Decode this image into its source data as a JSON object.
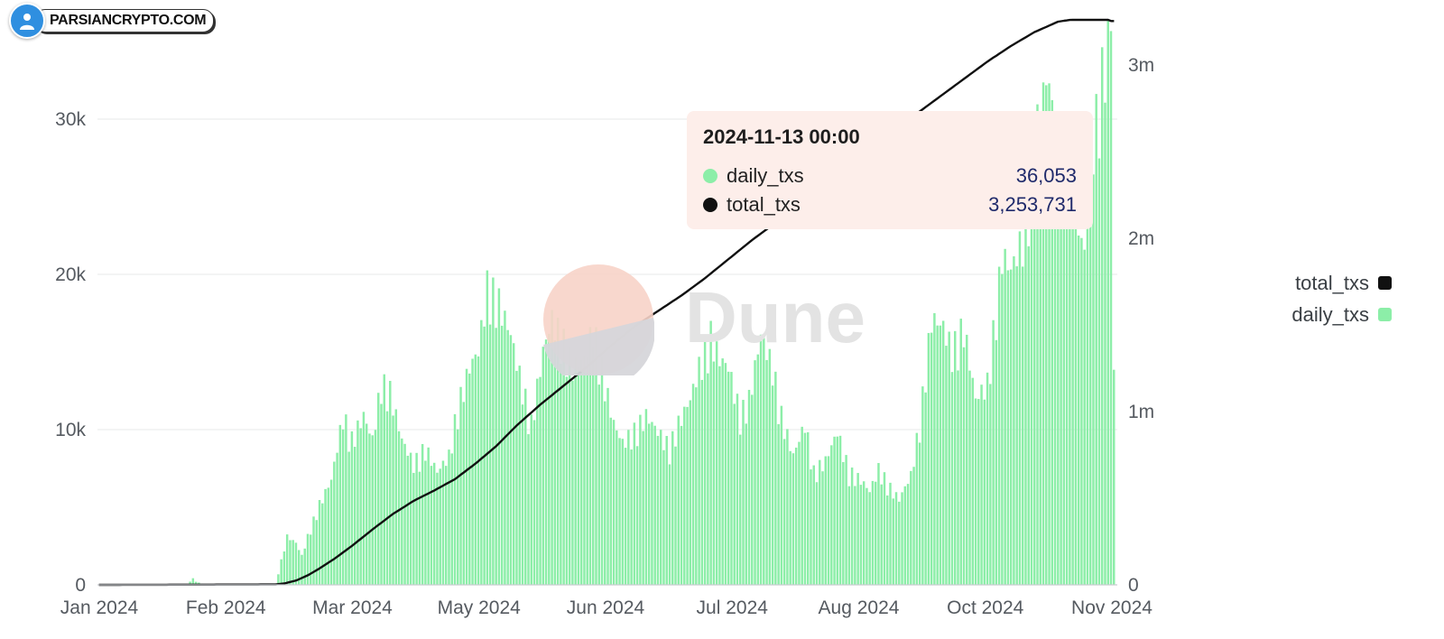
{
  "logo": {
    "text": "PARSIANCRYPTO.COM"
  },
  "watermark": {
    "text": "Dune"
  },
  "tooltip": {
    "title": "2024-11-13 00:00",
    "rows": [
      {
        "name": "daily_txs",
        "value": "36,053",
        "color": "#8ceea8"
      },
      {
        "name": "total_txs",
        "value": "3,253,731",
        "color": "#111111"
      }
    ]
  },
  "legend": [
    {
      "name": "total_txs",
      "color": "#111111"
    },
    {
      "name": "daily_txs",
      "color": "#8ceea8"
    }
  ],
  "chart_data": {
    "type": "bar+line",
    "title": "",
    "xlabel": "",
    "ylabel": "",
    "x_ticks": [
      "Jan 2024",
      "Feb 2024",
      "Mar 2024",
      "May 2024",
      "Jun 2024",
      "Jul 2024",
      "Aug 2024",
      "Oct 2024",
      "Nov 2024"
    ],
    "y_left": {
      "ticks": [
        "0",
        "10k",
        "20k",
        "30k"
      ],
      "tick_values": [
        0,
        10000,
        20000,
        30000
      ],
      "range": [
        0,
        30000
      ]
    },
    "y_right": {
      "ticks": [
        "0",
        "1m",
        "2m",
        "3m"
      ],
      "tick_values": [
        0,
        1000000,
        2000000,
        3000000
      ],
      "range": [
        0,
        3000000
      ]
    },
    "grid": true,
    "legend_position": "right",
    "series": [
      {
        "name": "daily_txs",
        "type": "bar",
        "axis": "left",
        "color": "#8ceea8",
        "anchors": [
          [
            0,
            0
          ],
          [
            30,
            0
          ],
          [
            32,
            400
          ],
          [
            33,
            200
          ],
          [
            36,
            0
          ],
          [
            60,
            0
          ],
          [
            62,
            1500
          ],
          [
            64,
            3000
          ],
          [
            67,
            2600
          ],
          [
            69,
            1800
          ],
          [
            71,
            3000
          ],
          [
            75,
            5000
          ],
          [
            79,
            6500
          ],
          [
            83,
            10500
          ],
          [
            86,
            9000
          ],
          [
            90,
            10500
          ],
          [
            93,
            9000
          ],
          [
            96,
            12500
          ],
          [
            99,
            12000
          ],
          [
            103,
            9000
          ],
          [
            107,
            7500
          ],
          [
            111,
            8500
          ],
          [
            115,
            7000
          ],
          [
            119,
            8000
          ],
          [
            122,
            11000
          ],
          [
            126,
            13500
          ],
          [
            129,
            14500
          ],
          [
            132,
            18500
          ],
          [
            136,
            17500
          ],
          [
            140,
            15500
          ],
          [
            143,
            13000
          ],
          [
            147,
            10000
          ],
          [
            151,
            14500
          ],
          [
            154,
            16500
          ],
          [
            158,
            15000
          ],
          [
            161,
            13500
          ],
          [
            165,
            14000
          ],
          [
            168,
            16000
          ],
          [
            172,
            12500
          ],
          [
            175,
            10000
          ],
          [
            178,
            8800
          ],
          [
            182,
            9500
          ],
          [
            186,
            10500
          ],
          [
            190,
            9500
          ],
          [
            194,
            8500
          ],
          [
            197,
            10000
          ],
          [
            201,
            11500
          ],
          [
            204,
            13500
          ],
          [
            208,
            15500
          ],
          [
            211,
            14000
          ],
          [
            214,
            13500
          ],
          [
            218,
            10500
          ],
          [
            221,
            11500
          ],
          [
            225,
            15500
          ],
          [
            229,
            13500
          ],
          [
            232,
            10500
          ],
          [
            236,
            8000
          ],
          [
            240,
            10000
          ],
          [
            243,
            7000
          ],
          [
            247,
            7700
          ],
          [
            251,
            9500
          ],
          [
            255,
            7000
          ],
          [
            259,
            6500
          ],
          [
            262,
            5800
          ],
          [
            265,
            7200
          ],
          [
            269,
            6000
          ],
          [
            272,
            5300
          ],
          [
            276,
            6800
          ],
          [
            279,
            10000
          ],
          [
            283,
            16500
          ],
          [
            287,
            16000
          ],
          [
            290,
            14500
          ],
          [
            294,
            16000
          ],
          [
            298,
            11500
          ],
          [
            302,
            12500
          ],
          [
            305,
            17000
          ],
          [
            307,
            20500
          ],
          [
            310,
            19500
          ],
          [
            314,
            21500
          ],
          [
            317,
            25500
          ],
          [
            320,
            30000
          ],
          [
            323,
            31500
          ],
          [
            326,
            24500
          ],
          [
            329,
            26000
          ],
          [
            332,
            23000
          ],
          [
            335,
            20500
          ],
          [
            338,
            27500
          ],
          [
            341,
            31500
          ],
          [
            344,
            36053
          ],
          [
            345,
            13000
          ]
        ]
      },
      {
        "name": "total_txs",
        "type": "line",
        "axis": "right",
        "color": "#111111",
        "anchors": [
          [
            0,
            0
          ],
          [
            60,
            2000
          ],
          [
            63,
            8000
          ],
          [
            67,
            25000
          ],
          [
            71,
            55000
          ],
          [
            75,
            95000
          ],
          [
            80,
            150000
          ],
          [
            86,
            225000
          ],
          [
            93,
            320000
          ],
          [
            100,
            410000
          ],
          [
            107,
            485000
          ],
          [
            114,
            545000
          ],
          [
            121,
            610000
          ],
          [
            128,
            700000
          ],
          [
            135,
            800000
          ],
          [
            142,
            920000
          ],
          [
            150,
            1040000
          ],
          [
            158,
            1150000
          ],
          [
            166,
            1260000
          ],
          [
            174,
            1380000
          ],
          [
            182,
            1490000
          ],
          [
            190,
            1580000
          ],
          [
            198,
            1670000
          ],
          [
            206,
            1770000
          ],
          [
            214,
            1880000
          ],
          [
            222,
            1990000
          ],
          [
            230,
            2090000
          ],
          [
            238,
            2190000
          ],
          [
            246,
            2290000
          ],
          [
            254,
            2400000
          ],
          [
            262,
            2510000
          ],
          [
            270,
            2620000
          ],
          [
            278,
            2720000
          ],
          [
            286,
            2820000
          ],
          [
            294,
            2920000
          ],
          [
            302,
            3020000
          ],
          [
            310,
            3110000
          ],
          [
            318,
            3190000
          ],
          [
            326,
            3250000
          ],
          [
            334,
            3270000
          ],
          [
            340,
            3290000
          ],
          [
            344,
            3253731
          ]
        ]
      }
    ]
  }
}
